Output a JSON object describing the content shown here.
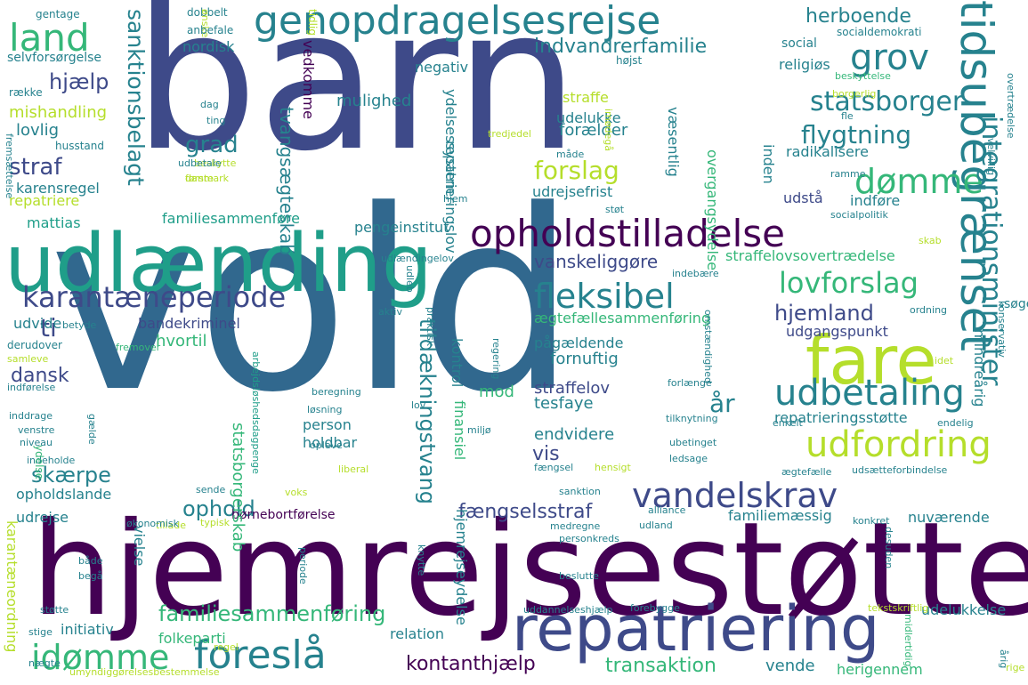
{
  "palette": {
    "dark_purple": "#440154",
    "indigo": "#3e4a89",
    "blue": "#31688e",
    "teal": "#26828e",
    "green_teal": "#1f9e89",
    "green": "#35b779",
    "light_green": "#6ece58",
    "lime": "#b5de2b",
    "yellow": "#e0e01a"
  },
  "words": [
    "barn",
    "vold",
    "hjemrejsestøtte",
    "udlænding",
    "repatriering",
    "genopdragelsesrejse",
    "opholdstilladelse",
    "fare",
    "tidsubegrænset",
    "karantæneperiode",
    "udfordring",
    "udbetaling",
    "vandelskrav",
    "foreslå",
    "land",
    "grov",
    "fleksibel",
    "lovforslag",
    "idømme",
    "dømme",
    "integrationsminister",
    "statsborger",
    "flygtning",
    "familiesammenføring",
    "forslag",
    "hjemland",
    "sanktionsbelagt",
    "kontanthjælp",
    "herboende",
    "indvandrerfamilie",
    "straf",
    "grad",
    "hjælp",
    "ti",
    "skærpe",
    "ophold",
    "fængselsstraf",
    "transaktion",
    "tildækningstvang",
    "tvangsægteskab",
    "vanskeliggøre",
    "dansk",
    "hvortil",
    "mishandling",
    "lovlig",
    "karensregel",
    "repatriere",
    "mattias",
    "udvide",
    "bandekriminel",
    "udelukke",
    "straffe",
    "mulighed",
    "social",
    "religiøs",
    "radikalisere",
    "straffelov",
    "tesfaye",
    "endvidere",
    "vis",
    "mod",
    "person",
    "holdbar",
    "forælder",
    "fornuftig",
    "udgangspunkt",
    "udstå",
    "indføre",
    "søge",
    "år",
    "pågældende",
    "ægtefællesammenføring",
    "repatrieringsstøtte",
    "familiemæssig",
    "nuværende",
    "udelukkelse",
    "initiativ",
    "relation",
    "vende",
    "herigennem",
    "folkeparti",
    "opholdslande",
    "udrejse",
    "børnebortførelse",
    "udrejsefrist",
    "pengeinstitut",
    "familiesammenføre",
    "straffelovsovertrædelse",
    "nordisk",
    "negativ",
    "vedkomme",
    "ydelsessystem",
    "repatrieringslov",
    "væsentlig",
    "overgangsydelse",
    "inden",
    "kontrol",
    "finansiel",
    "mindreårig",
    "hjemrejseydelse",
    "statsborgerskab",
    "vielse",
    "karantæneordning",
    "selvforsørgelse",
    "gentage",
    "dobbelt",
    "ønske",
    "anbefale",
    "tidlig",
    "højst",
    "socialdemokrati",
    "beskyttelse",
    "overtrædelse",
    "borgerlig",
    "række",
    "husstand",
    "dag",
    "ting",
    "måde",
    "tredjedel",
    "imødegå",
    "fle",
    "velvillig",
    "ramme",
    "beskytte",
    "danmark",
    "udbetale",
    "første",
    "hjem",
    "støt",
    "socialpolitik",
    "fremsættelse",
    "skab",
    "udleb",
    "udlændingelov",
    "indebære",
    "betyde",
    "aktiv",
    "ordning",
    "konservativ",
    "regering",
    "praktisk",
    "omstændighed",
    "derudover",
    "samleve",
    "fremover",
    "indførelse",
    "beregning",
    "forlænge",
    "idet",
    "inddrage",
    "gælde",
    "arbejdsløshedsdagpenge",
    "løsning",
    "lov",
    "tilknytning",
    "enkelt",
    "endelig",
    "venstre",
    "niveau",
    "indeholde",
    "miljø",
    "ubetinget",
    "opleve",
    "ledsage",
    "fængsel",
    "liberal",
    "hensigt",
    "ægtefælle",
    "udsætteforbindelse",
    "sende",
    "voks",
    "sanktion",
    "ydelse",
    "tillade",
    "typisk",
    "alliance",
    "økonomisk",
    "medregne",
    "udland",
    "konkret",
    "personkreds",
    "både",
    "periode",
    "knytte",
    "desuden",
    "begå",
    "beslutte",
    "støtte",
    "uddannelseshjælp",
    "forebygge",
    "tekstskriftlig",
    "midlertidig",
    "stige",
    "nægte",
    "umyndiggørelsesbestemmelse",
    "regel",
    "årig",
    "rige"
  ]
}
